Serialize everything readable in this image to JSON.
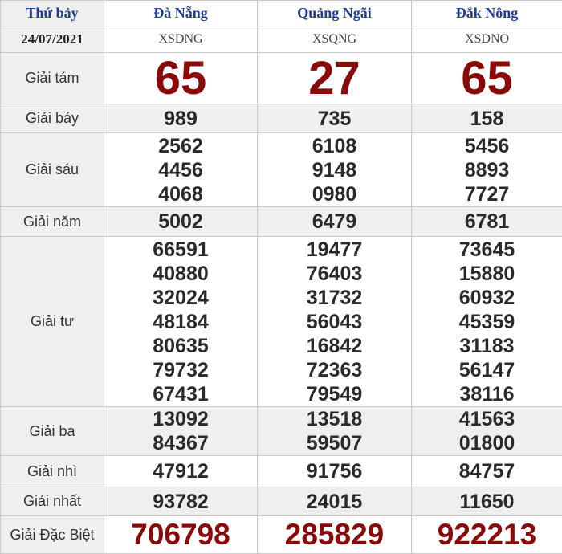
{
  "header": {
    "day": "Thứ bảy",
    "date": "24/07/2021",
    "provinces": [
      {
        "name": "Đà Nẵng",
        "code": "XSDNG"
      },
      {
        "name": "Quảng Ngãi",
        "code": "XSQNG"
      },
      {
        "name": "Đắk Nông",
        "code": "XSDNO"
      }
    ]
  },
  "colors": {
    "accent_red": "#8a0a0a",
    "header_blue": "#1f3b9a"
  },
  "prizes": [
    {
      "label": "Giải tám",
      "values": [
        [
          "65"
        ],
        [
          "27"
        ],
        [
          "65"
        ]
      ]
    },
    {
      "label": "Giải bảy",
      "values": [
        [
          "989"
        ],
        [
          "735"
        ],
        [
          "158"
        ]
      ]
    },
    {
      "label": "Giải sáu",
      "values": [
        [
          "2562",
          "4456",
          "4068"
        ],
        [
          "6108",
          "9148",
          "0980"
        ],
        [
          "5456",
          "8893",
          "7727"
        ]
      ]
    },
    {
      "label": "Giải năm",
      "values": [
        [
          "5002"
        ],
        [
          "6479"
        ],
        [
          "6781"
        ]
      ]
    },
    {
      "label": "Giải tư",
      "values": [
        [
          "66591",
          "40880",
          "32024",
          "48184",
          "80635",
          "79732",
          "67431"
        ],
        [
          "19477",
          "76403",
          "31732",
          "56043",
          "16842",
          "72363",
          "79549"
        ],
        [
          "73645",
          "15880",
          "60932",
          "45359",
          "31183",
          "56147",
          "38116"
        ]
      ]
    },
    {
      "label": "Giải ba",
      "values": [
        [
          "13092",
          "84367"
        ],
        [
          "13518",
          "59507"
        ],
        [
          "41563",
          "01800"
        ]
      ]
    },
    {
      "label": "Giải nhì",
      "values": [
        [
          "47912"
        ],
        [
          "91756"
        ],
        [
          "84757"
        ]
      ]
    },
    {
      "label": "Giải nhất",
      "values": [
        [
          "93782"
        ],
        [
          "24015"
        ],
        [
          "11650"
        ]
      ]
    },
    {
      "label": "Giải Đặc Biệt",
      "values": [
        [
          "706798"
        ],
        [
          "285829"
        ],
        [
          "922213"
        ]
      ]
    }
  ]
}
